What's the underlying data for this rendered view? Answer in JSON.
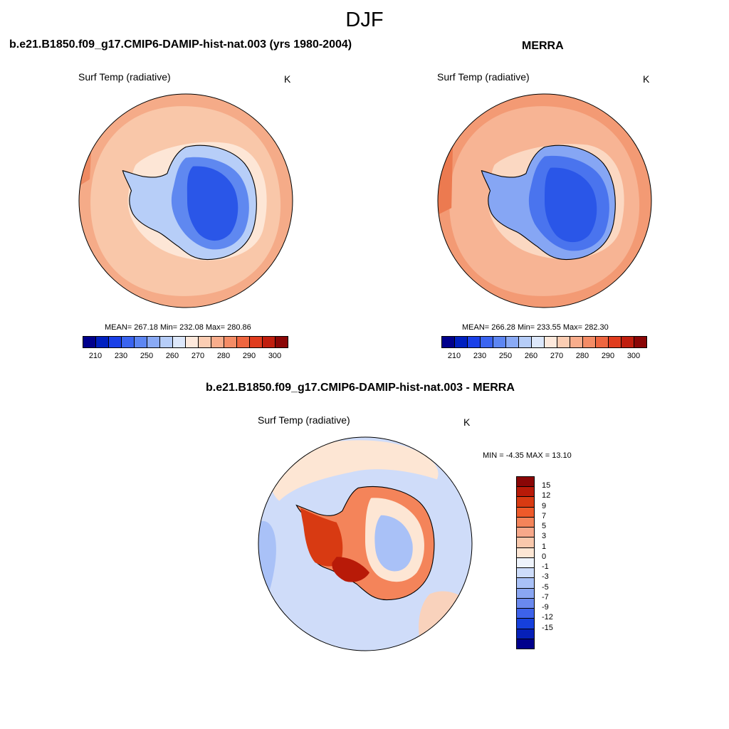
{
  "figure": {
    "season": "DJF"
  },
  "panels": {
    "model": {
      "title": "b.e21.B1850.f09_g17.CMIP6-DAMIP-hist-nat.003 (yrs 1980-2004)",
      "variable": "Surf Temp (radiative)",
      "units": "K",
      "stats": "MEAN= 267.18  Min= 232.08  Max= 280.86"
    },
    "obs": {
      "title": "MERRA",
      "variable": "Surf Temp (radiative)",
      "units": "K",
      "stats": "MEAN= 266.28  Min= 233.55  Max= 282.30"
    },
    "diff": {
      "title": "b.e21.B1850.f09_g17.CMIP6-DAMIP-hist-nat.003 - MERRA",
      "variable": "Surf Temp (radiative)",
      "units": "K",
      "stats": "MIN =  -4.35 MAX =  13.10"
    }
  },
  "colorbars": {
    "abs": {
      "colors": [
        "#00008c",
        "#0020c0",
        "#1a40e8",
        "#3a64f0",
        "#5d86f2",
        "#8aaaf5",
        "#b6cdf8",
        "#dde8fb",
        "#fde9dc",
        "#fbcdb3",
        "#f8ad8c",
        "#f48c66",
        "#ee6640",
        "#e03c1e",
        "#c01e0e",
        "#8a0606"
      ],
      "tick_labels": [
        "210",
        "230",
        "250",
        "260",
        "270",
        "280",
        "290",
        "300"
      ]
    },
    "diff": {
      "colors": [
        "#8a0606",
        "#b81a08",
        "#d83a12",
        "#ee5a2a",
        "#f4845a",
        "#f7a88a",
        "#f9c8ac",
        "#fde6d4",
        "#eef3fb",
        "#cddcfa",
        "#a9c1f7",
        "#8aa6f2",
        "#6a89ee",
        "#3d62ea",
        "#1640dc",
        "#0620b8",
        "#00008c"
      ],
      "tick_labels": [
        "15",
        "12",
        "9",
        "7",
        "5",
        "3",
        "1",
        "0",
        "-1",
        "-3",
        "-5",
        "-7",
        "-9",
        "-12",
        "-15"
      ]
    }
  }
}
